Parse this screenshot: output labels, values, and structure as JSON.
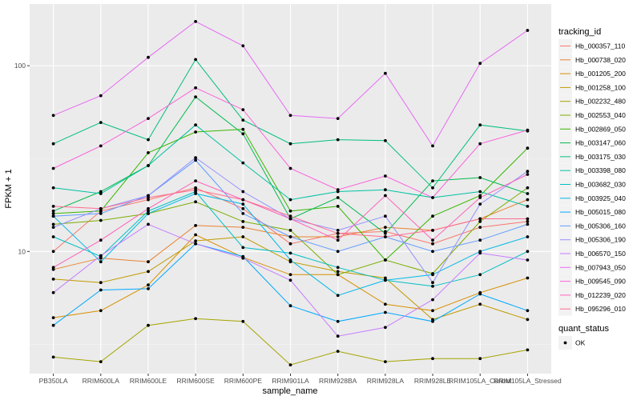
{
  "chart_data": {
    "type": "line",
    "xlabel": "sample_name",
    "ylabel": "FPKM + 1",
    "y_scale": "log10",
    "ylim": [
      2.2,
      215
    ],
    "grid": true,
    "legend_position": "right",
    "y_ticks": [
      10,
      100
    ],
    "categories": [
      "PB350LA",
      "RRIM600LA",
      "RRIM600LE",
      "RRIM600SE",
      "RRIM600PE",
      "RRIM901LA",
      "RRIM928BA",
      "RRIM928LA",
      "RRIM928LE",
      "RRIM105LA_Control",
      "RRIM105LA_Stressed"
    ],
    "x_tick_labels": [
      "PB350LA",
      "RRIM600LA",
      "RRIM600LE",
      "RRIM600SE",
      "RRIM600PE",
      "RRIM901LA",
      "RRIM928BA",
      "RRIM928LA",
      "RRIM928LE",
      "RRIM105LA_Control",
      "RRIM105LA_Stressed"
    ],
    "legend": {
      "title": "tracking_id",
      "entries": [
        "Hb_000357_110",
        "Hb_000738_020",
        "Hb_001205_200",
        "Hb_001258_100",
        "Hb_002232_480",
        "Hb_002553_040",
        "Hb_002869_050",
        "Hb_003147_060",
        "Hb_003175_030",
        "Hb_003398_080",
        "Hb_003682_030",
        "Hb_003925_040",
        "Hb_005015_080",
        "Hb_005306_160",
        "Hb_005306_190",
        "Hb_006570_150",
        "Hb_007943_050",
        "Hb_009545_090",
        "Hb_012239_020",
        "Hb_095296_010"
      ]
    },
    "shape_legend": {
      "title": "quant_status",
      "entries": [
        "OK"
      ]
    },
    "series": [
      {
        "name": "Hb_000357_110",
        "color": "#F8766D",
        "values": [
          10.0,
          16.5,
          19.0,
          22.0,
          17.0,
          11.0,
          12.5,
          12.8,
          11.0,
          13.5,
          14.5
        ]
      },
      {
        "name": "Hb_000738_020",
        "color": "#EA8331",
        "values": [
          8.0,
          9.2,
          8.8,
          13.8,
          13.5,
          12.0,
          12.0,
          13.5,
          13.0,
          15.0,
          19.0
        ]
      },
      {
        "name": "Hb_001205_200",
        "color": "#D89000",
        "values": [
          4.4,
          4.8,
          6.6,
          12.3,
          9.3,
          7.5,
          7.5,
          5.2,
          4.8,
          6.0,
          7.2
        ]
      },
      {
        "name": "Hb_001258_100",
        "color": "#C09B00",
        "values": [
          7.1,
          6.8,
          7.8,
          11.4,
          12.0,
          8.8,
          7.8,
          7.2,
          4.3,
          5.2,
          4.3
        ]
      },
      {
        "name": "Hb_002232_480",
        "color": "#A3A500",
        "values": [
          2.7,
          2.55,
          4.0,
          4.35,
          4.2,
          2.45,
          2.9,
          2.55,
          2.65,
          2.65,
          2.95
        ]
      },
      {
        "name": "Hb_002553_040",
        "color": "#7CAE00",
        "values": [
          14.0,
          14.7,
          16.0,
          18.5,
          14.5,
          13.0,
          7.5,
          9.0,
          7.6,
          14.5,
          22.0
        ]
      },
      {
        "name": "Hb_002869_050",
        "color": "#39B600",
        "values": [
          16.0,
          16.5,
          34.0,
          44.0,
          45.5,
          16.5,
          17.5,
          9.0,
          15.5,
          20.0,
          36.0
        ]
      },
      {
        "name": "Hb_003147_060",
        "color": "#00BB4E",
        "values": [
          16.5,
          21.0,
          29.0,
          68.0,
          43.0,
          15.0,
          19.5,
          12.5,
          24.0,
          25.0,
          20.5
        ]
      },
      {
        "name": "Hb_003175_030",
        "color": "#00BF7D",
        "values": [
          38.0,
          49.5,
          40.0,
          108.0,
          51.0,
          38.0,
          40.0,
          39.5,
          22.0,
          48.0,
          44.5
        ]
      },
      {
        "name": "Hb_003398_080",
        "color": "#00C1A3",
        "values": [
          22.0,
          20.5,
          29.0,
          48.0,
          30.0,
          19.0,
          21.0,
          21.5,
          19.5,
          21.0,
          17.5
        ]
      },
      {
        "name": "Hb_003682_030",
        "color": "#00BFC4",
        "values": [
          12.0,
          9.4,
          16.5,
          21.0,
          10.5,
          9.8,
          8.2,
          7.0,
          6.5,
          7.5,
          10.0
        ]
      },
      {
        "name": "Hb_003925_040",
        "color": "#00B8E7",
        "values": [
          15.5,
          8.8,
          16.0,
          20.5,
          18.0,
          9.0,
          5.8,
          7.0,
          7.5,
          10.0,
          12.0
        ]
      },
      {
        "name": "Hb_005015_080",
        "color": "#00A9FF",
        "values": [
          4.0,
          6.2,
          6.3,
          11.0,
          9.4,
          5.1,
          4.2,
          4.7,
          4.2,
          5.9,
          4.8
        ]
      },
      {
        "name": "Hb_005306_160",
        "color": "#619CFF",
        "values": [
          15.5,
          16.0,
          20.0,
          31.0,
          16.0,
          12.0,
          10.0,
          12.0,
          10.0,
          11.5,
          14.0
        ]
      },
      {
        "name": "Hb_005306_190",
        "color": "#9590FF",
        "values": [
          13.5,
          17.0,
          20.0,
          32.0,
          21.0,
          15.0,
          13.0,
          15.5,
          6.8,
          18.0,
          27.0
        ]
      },
      {
        "name": "Hb_006570_150",
        "color": "#C77CFF",
        "values": [
          6.0,
          9.5,
          14.0,
          11.0,
          9.2,
          7.0,
          3.5,
          3.9,
          5.5,
          9.8,
          9.0
        ]
      },
      {
        "name": "Hb_007943_050",
        "color": "#E76BF3",
        "values": [
          54.0,
          69.0,
          111.0,
          173.0,
          128.0,
          54.0,
          52.0,
          91.0,
          37.0,
          103.0,
          155.0
        ]
      },
      {
        "name": "Hb_009545_090",
        "color": "#FA62DB",
        "values": [
          28.0,
          37.0,
          52.0,
          76.0,
          58.0,
          28.0,
          21.5,
          25.5,
          19.5,
          38.0,
          45.0
        ]
      },
      {
        "name": "Hb_012239_020",
        "color": "#FF62BC",
        "values": [
          8.2,
          11.5,
          17.0,
          24.0,
          19.0,
          15.0,
          11.5,
          20.0,
          11.5,
          19.5,
          26.0
        ]
      },
      {
        "name": "Hb_095296_010",
        "color": "#FF6C91",
        "values": [
          17.5,
          17.0,
          19.5,
          21.5,
          19.0,
          15.5,
          12.5,
          12.0,
          13.0,
          15.0,
          15.0
        ]
      }
    ]
  }
}
